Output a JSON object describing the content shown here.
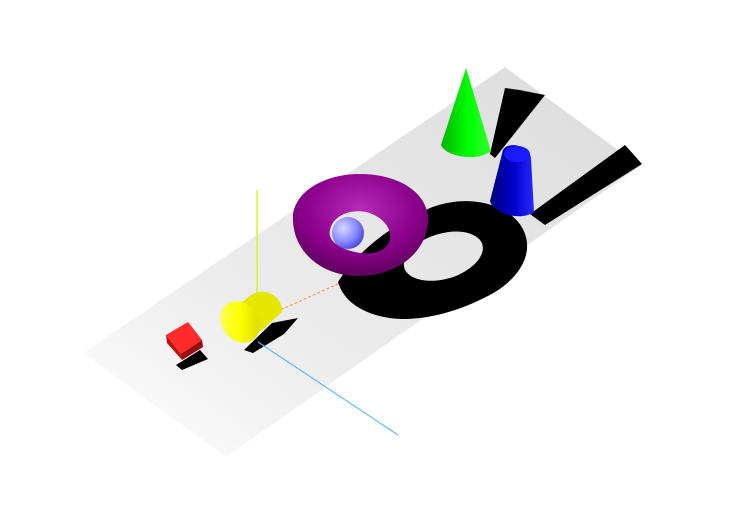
{
  "scene": {
    "background": "#ffffff",
    "ground_plane": {
      "shape": "rectangle",
      "fill": "#e9e9e9",
      "shadow": "#000000"
    },
    "objects": [
      {
        "name": "red-cube",
        "shape": "cube",
        "color": "#ff2a2a"
      },
      {
        "name": "yellow-cylinder",
        "shape": "cylinder",
        "color": "#ffff00"
      },
      {
        "name": "purple-torus",
        "shape": "torus",
        "color": "#8b008b"
      },
      {
        "name": "light-blue-sphere",
        "shape": "sphere",
        "color": "#8c8cff"
      },
      {
        "name": "green-cone",
        "shape": "cone",
        "color": "#00ff00"
      },
      {
        "name": "blue-truncated-cone",
        "shape": "frustum",
        "color": "#0000cc"
      }
    ],
    "axes": {
      "x": {
        "color": "#ff8c3a",
        "style": "dashed"
      },
      "y": {
        "color": "#c8ff00",
        "style": "solid"
      },
      "z": {
        "color": "#5ab4ff",
        "style": "solid"
      }
    }
  }
}
